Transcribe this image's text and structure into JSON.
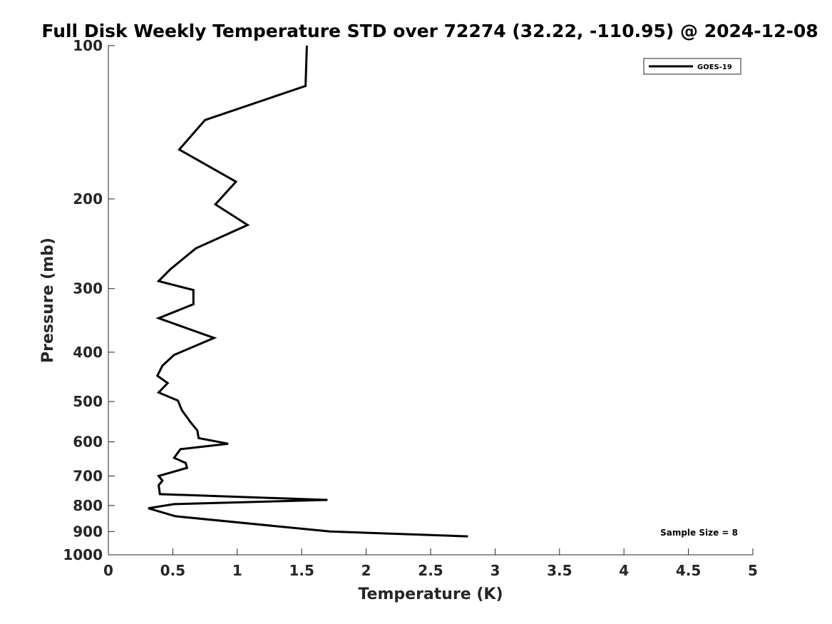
{
  "chart_data": {
    "type": "line",
    "title": "Full Disk Weekly Temperature STD over 72274 (32.22, -110.95) @ 2024-12-08",
    "xlabel": "Temperature (K)",
    "ylabel": "Pressure (mb)",
    "xlim": [
      0,
      5
    ],
    "ylim": [
      100,
      1000
    ],
    "y_scale": "log",
    "y_reversed": true,
    "x_ticks": [
      "0",
      "0.5",
      "1",
      "1.5",
      "2",
      "2.5",
      "3",
      "3.5",
      "4",
      "4.5",
      "5"
    ],
    "y_ticks": [
      "100",
      "200",
      "300",
      "400",
      "500",
      "600",
      "700",
      "800",
      "900",
      "1000"
    ],
    "grid": false,
    "legend_position": "top-right",
    "annotation": "Sample Size = 8",
    "series": [
      {
        "name": "GOES-19",
        "color": "#000000",
        "points": [
          [
            1.54,
            100
          ],
          [
            1.53,
            120
          ],
          [
            0.75,
            140
          ],
          [
            0.55,
            160
          ],
          [
            0.99,
            185
          ],
          [
            0.83,
            205
          ],
          [
            1.08,
            225
          ],
          [
            0.68,
            250
          ],
          [
            0.48,
            275
          ],
          [
            0.39,
            290
          ],
          [
            0.66,
            302
          ],
          [
            0.66,
            322
          ],
          [
            0.39,
            343
          ],
          [
            0.82,
            375
          ],
          [
            0.51,
            405
          ],
          [
            0.42,
            425
          ],
          [
            0.38,
            445
          ],
          [
            0.46,
            460
          ],
          [
            0.39,
            480
          ],
          [
            0.54,
            498
          ],
          [
            0.57,
            520
          ],
          [
            0.64,
            550
          ],
          [
            0.69,
            570
          ],
          [
            0.7,
            590
          ],
          [
            0.93,
            605
          ],
          [
            0.56,
            620
          ],
          [
            0.51,
            645
          ],
          [
            0.6,
            660
          ],
          [
            0.61,
            675
          ],
          [
            0.39,
            700
          ],
          [
            0.42,
            715
          ],
          [
            0.39,
            730
          ],
          [
            0.4,
            760
          ],
          [
            1.7,
            780
          ],
          [
            0.51,
            795
          ],
          [
            0.31,
            810
          ],
          [
            0.52,
            840
          ],
          [
            1.72,
            900
          ],
          [
            2.79,
            920
          ]
        ]
      }
    ]
  }
}
